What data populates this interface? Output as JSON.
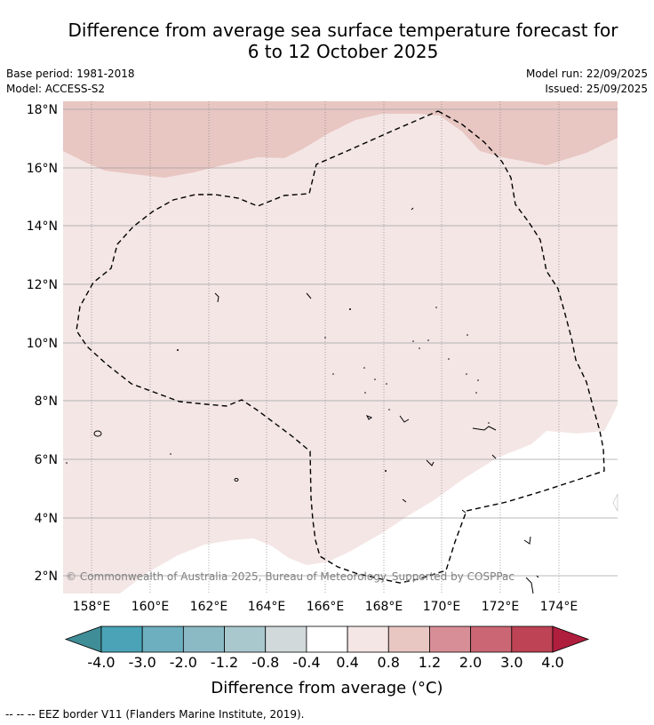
{
  "title_line1": "Difference from average sea surface temperature forecast for",
  "title_line2": "6 to 12 October 2025",
  "base_period": "Base period: 1981-2018",
  "model": "Model: ACCESS-S2",
  "model_run": "Model run: 22/09/2025",
  "issued": "Issued: 25/09/2025",
  "copyright": "© Commonwealth of Australia 2025, Bureau of Meteorology. Supported by COSPPac",
  "lat_labels": [
    "18°N",
    "16°N",
    "14°N",
    "12°N",
    "10°N",
    "8°N",
    "6°N",
    "4°N",
    "2°N"
  ],
  "lon_labels": [
    "158°E",
    "160°E",
    "162°E",
    "164°E",
    "166°E",
    "168°E",
    "170°E",
    "172°E",
    "174°E"
  ],
  "colorbar": {
    "labels": [
      "-4.0",
      "-3.0",
      "-2.0",
      "-1.2",
      "-0.8",
      "-0.4",
      "0.4",
      "0.8",
      "1.2",
      "2.0",
      "3.0",
      "4.0"
    ],
    "colors": [
      "#4aa3b6",
      "#6eafbf",
      "#8bbac5",
      "#a9c8ce",
      "#d2d9db",
      "#ffffff",
      "#f4e6e5",
      "#e8c6c2",
      "#d88e96",
      "#cb6774",
      "#be4355"
    ],
    "under_color": "#3f8d96",
    "over_color": "#b01e3e",
    "title": "Difference from average (°C)"
  },
  "legend_note": "--  --  -- EEZ border V11 (Flanders Marine Institute, 2019).",
  "map_colors": {
    "band_0_4_to_0_8": "#f4e6e5",
    "band_0_8_to_1_2": "#e8c6c2",
    "band_neg04_to_04": "#ffffff"
  }
}
